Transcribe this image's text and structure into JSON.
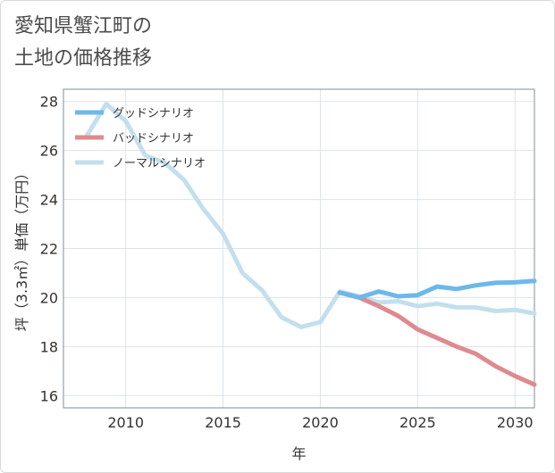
{
  "page": {
    "title": "愛知県蟹江町の\n土地の価格推移"
  },
  "chart_data": {
    "type": "line",
    "title": "愛知県蟹江町の土地の価格推移",
    "xlabel": "年",
    "ylabel": "坪（3.3㎡）単価（万円）",
    "xlim": [
      2006.8,
      2031
    ],
    "ylim": [
      15.5,
      28.5
    ],
    "x_ticks": [
      2010,
      2015,
      2020,
      2025,
      2030
    ],
    "y_ticks": [
      16,
      18,
      20,
      22,
      24,
      26,
      28
    ],
    "grid": true,
    "legend_position": "top-left",
    "series": [
      {
        "name": "グッドシナリオ",
        "color": "#6cb8ec",
        "x": [
          2021,
          2022,
          2023,
          2024,
          2025,
          2026,
          2027,
          2028,
          2029,
          2030,
          2031
        ],
        "y": [
          20.2,
          20.0,
          20.25,
          20.05,
          20.1,
          20.45,
          20.35,
          20.5,
          20.6,
          20.62,
          20.68
        ]
      },
      {
        "name": "バッドシナリオ",
        "color": "#de8a8f",
        "x": [
          2021,
          2022,
          2023,
          2024,
          2025,
          2026,
          2027,
          2028,
          2029,
          2030,
          2031
        ],
        "y": [
          20.2,
          20.0,
          19.65,
          19.25,
          18.7,
          18.35,
          18.0,
          17.7,
          17.2,
          16.8,
          16.45
        ]
      },
      {
        "name": "ノーマルシナリオ",
        "color": "#c3dfee",
        "x": [
          2008,
          2009,
          2010,
          2011,
          2012,
          2013,
          2014,
          2015,
          2016,
          2017,
          2018,
          2019,
          2020,
          2021,
          2022,
          2023,
          2024,
          2025,
          2026,
          2027,
          2028,
          2029,
          2030,
          2031
        ],
        "y": [
          26.6,
          27.9,
          27.2,
          25.8,
          25.5,
          24.8,
          23.6,
          22.6,
          21.0,
          20.3,
          19.2,
          18.8,
          19.0,
          20.25,
          20.05,
          19.8,
          19.85,
          19.65,
          19.75,
          19.6,
          19.6,
          19.45,
          19.5,
          19.35
        ]
      }
    ]
  }
}
